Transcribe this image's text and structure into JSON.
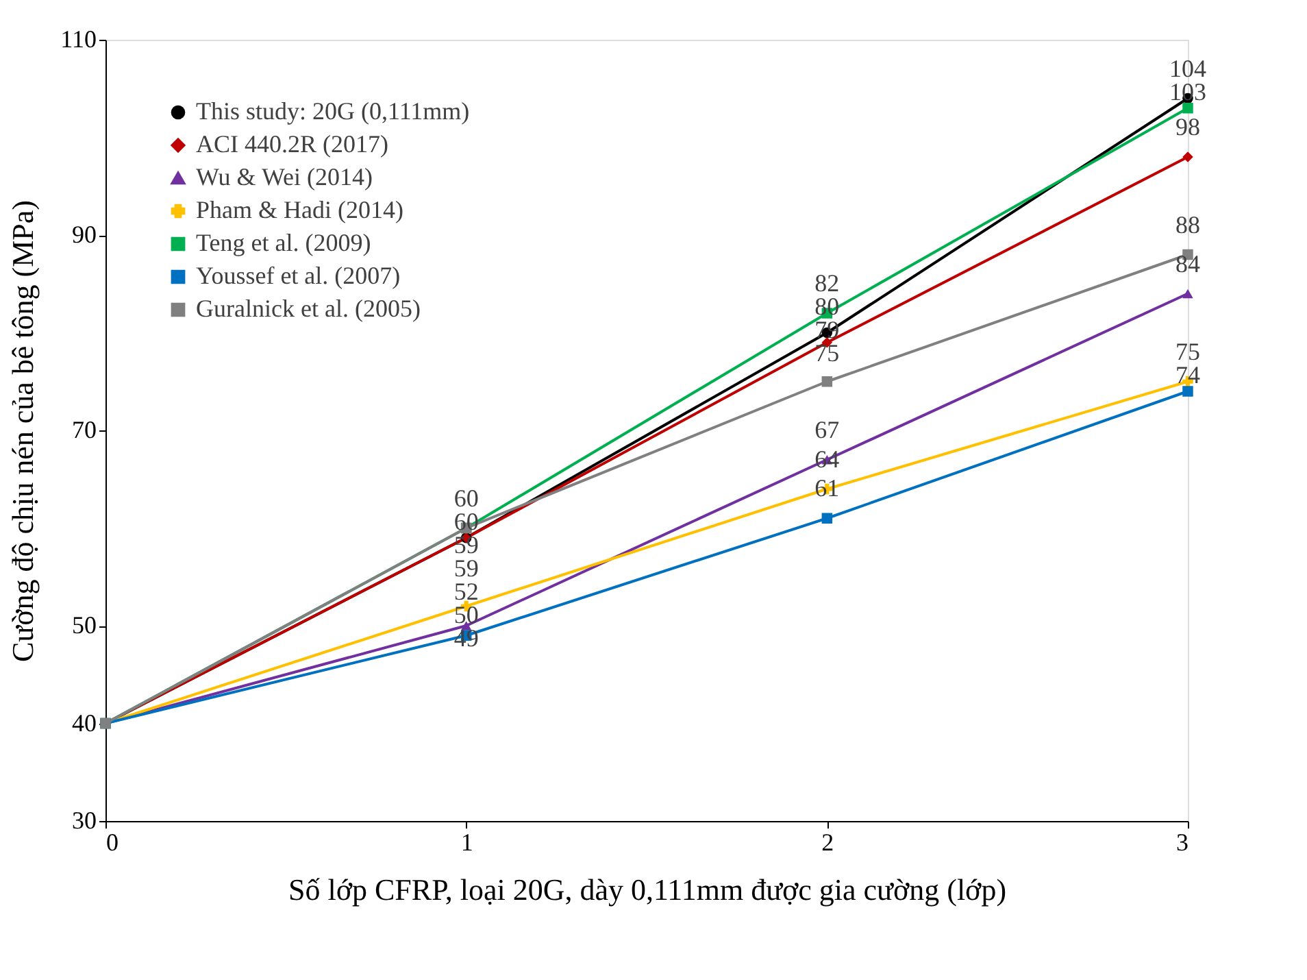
{
  "chart_data": {
    "type": "line",
    "xlabel": "Số lớp CFRP, loại 20G, dày 0,111mm được gia cường (lớp)",
    "ylabel": "Cường độ chịu nén của bê tông (MPa)",
    "x": [
      0,
      1,
      2,
      3
    ],
    "xlim": [
      0,
      3
    ],
    "xticks": [
      0,
      1,
      2,
      3
    ],
    "ylim": [
      30,
      110
    ],
    "yticks": [
      30,
      40,
      50,
      70,
      90,
      110
    ],
    "grid": false,
    "legend": "top left",
    "line_style": "solid",
    "series": [
      {
        "name": "This study: 20G (0,111mm)",
        "color": "#000000",
        "marker": "circle",
        "values": [
          40,
          59,
          80,
          104
        ],
        "value_labels": [
          null,
          "59",
          "80",
          "104"
        ]
      },
      {
        "name": "ACI 440.2R (2017)",
        "color": "#c00000",
        "marker": "diamond",
        "values": [
          40,
          59,
          79,
          98
        ],
        "value_labels": [
          null,
          "59",
          "79",
          "98"
        ]
      },
      {
        "name": "Wu & Wei (2014)",
        "color": "#7030a0",
        "marker": "triangle",
        "values": [
          40,
          50,
          67,
          84
        ],
        "value_labels": [
          null,
          "50",
          "67",
          "84"
        ]
      },
      {
        "name": "Pham & Hadi (2014)",
        "color": "#ffc000",
        "marker": "cross",
        "values": [
          40,
          52,
          64,
          75
        ],
        "value_labels": [
          null,
          "52",
          "64",
          "75"
        ]
      },
      {
        "name": "Teng et al. (2009)",
        "color": "#00b050",
        "marker": "square",
        "values": [
          40,
          60,
          82,
          103
        ],
        "value_labels": [
          null,
          "60",
          "82",
          "103"
        ]
      },
      {
        "name": "Youssef et al. (2007)",
        "color": "#0070c0",
        "marker": "square",
        "values": [
          40,
          49,
          61,
          74
        ],
        "value_labels": [
          null,
          "49",
          "61",
          "74"
        ]
      },
      {
        "name": "Guralnick et al. (2005)",
        "color": "#808080",
        "marker": "square",
        "values": [
          40,
          60,
          75,
          88
        ],
        "value_labels": [
          null,
          "60",
          "75",
          "88"
        ]
      }
    ]
  }
}
